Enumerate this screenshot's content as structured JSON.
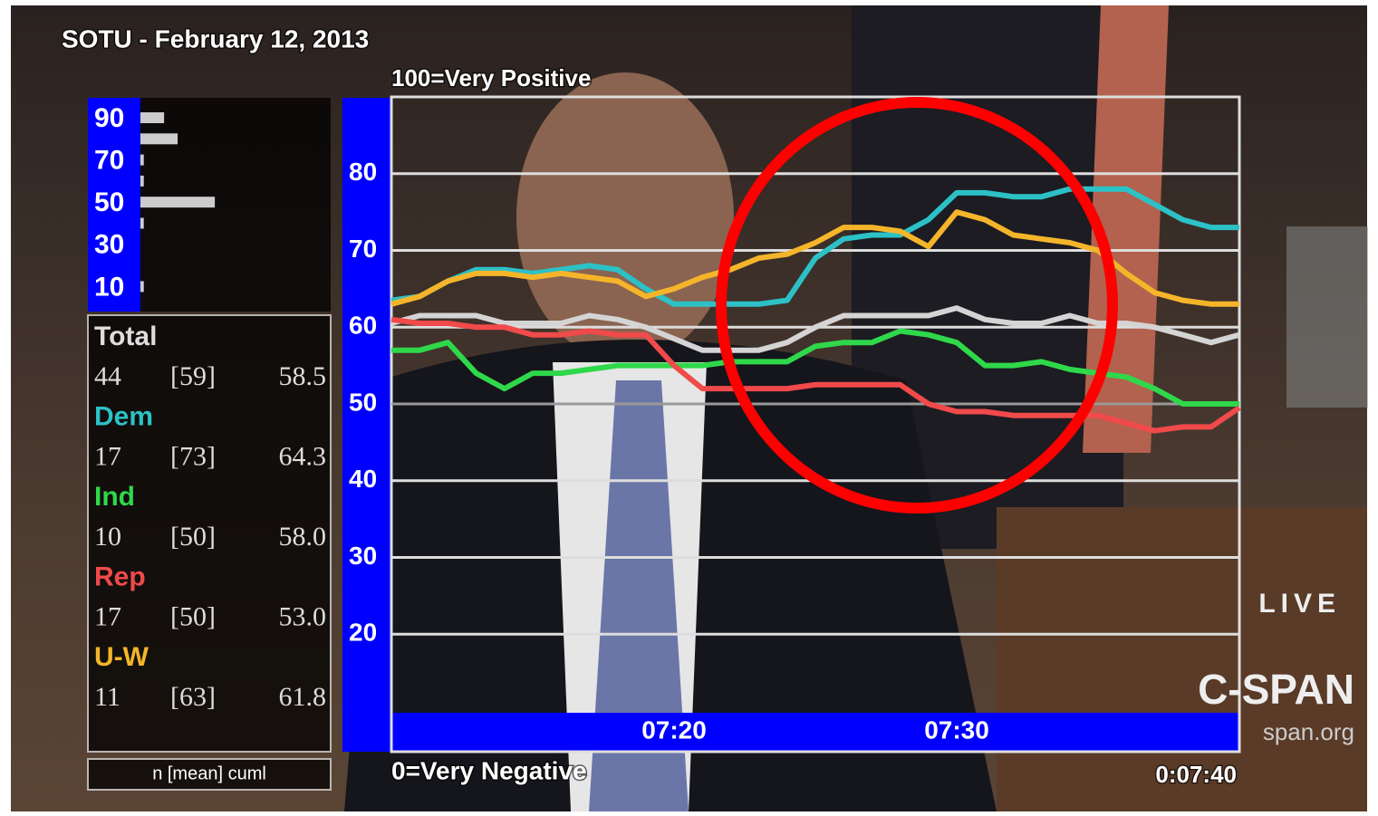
{
  "header": {
    "title": "SOTU - February 12, 2013",
    "live": "LIVE",
    "network": "C-SPAN",
    "site": "span.org"
  },
  "chart_data": [
    {
      "type": "line",
      "top_label": "100=Very Positive",
      "bottom_label": "0=Very Negative",
      "elapsed": "0:07:40",
      "x": [
        430,
        431,
        432,
        433,
        434,
        435,
        436,
        437,
        438,
        439,
        440,
        441,
        442,
        443,
        444,
        445,
        446,
        447,
        448,
        449,
        450,
        451,
        452,
        453,
        454,
        455,
        456,
        457,
        458,
        459,
        460
      ],
      "xlim": [
        430,
        460
      ],
      "xticks": [
        {
          "value": 440,
          "label": "07:20"
        },
        {
          "value": 450,
          "label": "07:30"
        }
      ],
      "ylim": [
        10,
        90
      ],
      "yticks": [
        20,
        30,
        40,
        50,
        60,
        70,
        80
      ],
      "grid": true,
      "series": [
        {
          "name": "Total",
          "color": "#d4d4d4",
          "values": [
            60.5,
            61.5,
            61.5,
            61.5,
            60.5,
            60.5,
            60.5,
            61.5,
            61,
            60,
            58.5,
            57,
            57,
            57,
            58,
            60,
            61.5,
            61.5,
            61.5,
            61.5,
            62.5,
            61,
            60.5,
            60.5,
            61.5,
            60.5,
            60.5,
            60,
            59,
            58,
            59
          ]
        },
        {
          "name": "Dem",
          "color": "#2cc1c6",
          "values": [
            63.5,
            64,
            66,
            67.5,
            67.5,
            67,
            67.5,
            68,
            67.5,
            65,
            63,
            63,
            63,
            63,
            63.5,
            69,
            71.5,
            72,
            72,
            74,
            77.5,
            77.5,
            77,
            77,
            78,
            78,
            78,
            76,
            74,
            73,
            73
          ]
        },
        {
          "name": "Ind",
          "color": "#2fd84a",
          "values": [
            57,
            57,
            58,
            54,
            52,
            54,
            54,
            54.5,
            55,
            55,
            55,
            55,
            55.5,
            55.5,
            55.5,
            57.5,
            58,
            58,
            59.5,
            59,
            58,
            55,
            55,
            55.5,
            54.5,
            54,
            53.5,
            52,
            50,
            50,
            50
          ]
        },
        {
          "name": "Rep",
          "color": "#f04a4a",
          "values": [
            61,
            60.5,
            60.5,
            60,
            60,
            59,
            59,
            59.5,
            59,
            59,
            55,
            52,
            52,
            52,
            52,
            52.5,
            52.5,
            52.5,
            52.5,
            50,
            49,
            49,
            48.5,
            48.5,
            48.5,
            48.5,
            47.5,
            46.5,
            47,
            47,
            49.5
          ]
        },
        {
          "name": "U-W",
          "color": "#f5b52a",
          "values": [
            63,
            64,
            66,
            67,
            67,
            66.5,
            67,
            66.5,
            66,
            64,
            65,
            66.5,
            67.5,
            69,
            69.5,
            71,
            73,
            73,
            72.5,
            70.5,
            75,
            74,
            72,
            71.5,
            71,
            70,
            67,
            64.5,
            63.5,
            63,
            63
          ]
        }
      ]
    },
    {
      "type": "bar",
      "orientation": "horizontal",
      "categories": [
        "90",
        null,
        "70",
        null,
        "50",
        null,
        "30",
        null,
        "10"
      ],
      "values": [
        7,
        11,
        1,
        1,
        22,
        1,
        0,
        0,
        1
      ],
      "xlim": [
        0,
        30
      ],
      "color": "#cccccc"
    }
  ],
  "table": {
    "rows": [
      [
        "44",
        "[59]",
        "58.5"
      ],
      [
        "17",
        "[73]",
        "64.3"
      ],
      [
        "10",
        "[50]",
        "58.0"
      ],
      [
        "17",
        "[50]",
        "53.0"
      ],
      [
        "11",
        "[63]",
        "61.8"
      ]
    ],
    "footer": "n [mean] cuml"
  }
}
